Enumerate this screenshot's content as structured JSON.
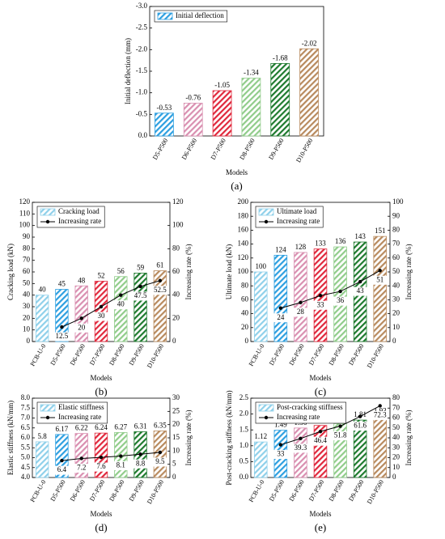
{
  "chart_data": [
    {
      "type": "bar",
      "caption": "(a)",
      "ylabel": "Initial deflection (mm)",
      "xlabel": "Models",
      "categories": [
        "D5-P500",
        "D6-P500",
        "D7-P500",
        "D8-P500",
        "D9-P500",
        "D10-P500"
      ],
      "ylim": [
        0,
        -3.0
      ],
      "yticks": [
        {
          "value": 0,
          "label": "0.0"
        },
        -0.5,
        {
          "value": -1,
          "label": "-1.0"
        },
        -1.5,
        {
          "value": -2,
          "label": "-2.0"
        },
        -2.5,
        {
          "value": -3,
          "label": "-3.0"
        }
      ],
      "series": [
        {
          "name": "Initial deflection",
          "colors": [
            "#2d9fe0",
            "#d98fb0",
            "#e0283c",
            "#90cc8a",
            "#1e7a2e",
            "#b88a5e"
          ],
          "values": [
            -0.53,
            -0.76,
            -1.05,
            -1.34,
            -1.68,
            -2.02
          ]
        }
      ]
    },
    {
      "type": "combo",
      "caption": "(b)",
      "ylabel": "Cracking load (kN)",
      "y2label": "Increasing rate (%)",
      "xlabel": "Models",
      "categories": [
        "PCB-U-0",
        "D5-P500",
        "D6-P500",
        "D7-P500",
        "D8-P500",
        "D9-P500",
        "D10-P500"
      ],
      "ylim": [
        0,
        120
      ],
      "yticks": [
        0,
        10,
        20,
        30,
        40,
        50,
        60,
        70,
        80,
        90,
        100,
        110,
        120
      ],
      "y2lim": [
        0,
        120
      ],
      "y2ticks": [
        0,
        20,
        40,
        60,
        80,
        100,
        120
      ],
      "series": [
        {
          "name": "Cracking load",
          "colors": [
            "#8fd0ea",
            "#2d9fe0",
            "#d98fb0",
            "#e0283c",
            "#90cc8a",
            "#1e7a2e",
            "#b88a5e"
          ],
          "values": [
            40,
            45,
            48,
            52,
            56,
            59,
            61
          ]
        },
        {
          "name": "Increasing rate",
          "color": "#000000",
          "axis": "y2",
          "values": [
            null,
            12.5,
            20,
            30,
            40,
            47.5,
            52.5
          ]
        }
      ]
    },
    {
      "type": "combo",
      "caption": "(c)",
      "ylabel": "Ultimate load (kN)",
      "y2label": "Increasing rate (%)",
      "xlabel": "Models",
      "categories": [
        "PCB-U-0",
        "D5-P500",
        "D6-P500",
        "D7-P500",
        "D8-P500",
        "D9-P500",
        "D10-P500"
      ],
      "ylim": [
        0,
        200
      ],
      "yticks": [
        0,
        20,
        40,
        60,
        80,
        100,
        120,
        140,
        160,
        180,
        200
      ],
      "y2lim": [
        0,
        100
      ],
      "y2ticks": [
        0,
        10,
        20,
        30,
        40,
        50,
        60,
        70,
        80,
        90,
        100
      ],
      "series": [
        {
          "name": "Ultimate load",
          "colors": [
            "#8fd0ea",
            "#2d9fe0",
            "#d98fb0",
            "#e0283c",
            "#90cc8a",
            "#1e7a2e",
            "#b88a5e"
          ],
          "values": [
            100,
            124,
            128,
            133,
            136,
            143,
            151
          ]
        },
        {
          "name": "Increasing rate",
          "color": "#000000",
          "axis": "y2",
          "values": [
            null,
            24,
            28,
            33,
            36,
            43,
            51
          ]
        }
      ]
    },
    {
      "type": "combo",
      "caption": "(d)",
      "ylabel": "Elastic stiffness (kN/mm)",
      "y2label": "Increasing rate (%)",
      "xlabel": "Models",
      "categories": [
        "PCB-U-0",
        "D5-P500",
        "D6-P500",
        "D7-P500",
        "D8-P500",
        "D9-P500",
        "D10-P500"
      ],
      "ylim": [
        4,
        8
      ],
      "yticks": [
        {
          "value": 4,
          "label": "4.0"
        },
        4.5,
        {
          "value": 5,
          "label": "5.0"
        },
        5.5,
        {
          "value": 6,
          "label": "6.0"
        },
        6.5,
        {
          "value": 7,
          "label": "7.0"
        },
        7.5,
        {
          "value": 8,
          "label": "8.0"
        }
      ],
      "y2lim": [
        0,
        30
      ],
      "y2ticks": [
        0,
        5,
        10,
        15,
        20,
        25,
        30
      ],
      "series": [
        {
          "name": "Elastic stiffness",
          "colors": [
            "#8fd0ea",
            "#2d9fe0",
            "#d98fb0",
            "#e0283c",
            "#90cc8a",
            "#1e7a2e",
            "#b88a5e"
          ],
          "values": [
            5.8,
            6.17,
            6.22,
            6.24,
            6.27,
            6.31,
            6.35
          ]
        },
        {
          "name": "Increasing rate",
          "color": "#000000",
          "axis": "y2",
          "values": [
            null,
            6.4,
            7.2,
            7.6,
            8.1,
            8.8,
            9.5
          ]
        }
      ]
    },
    {
      "type": "combo",
      "caption": "(e)",
      "ylabel": "Post-cracking stiffness (kN/mm)",
      "y2label": "Increasing rate (%)",
      "xlabel": "Models",
      "categories": [
        "PCB-U-0",
        "D5-P500",
        "D6-P500",
        "D7-P500",
        "D8-P500",
        "D9-P500",
        "D10-P500"
      ],
      "ylim": [
        0,
        2.5
      ],
      "yticks": [
        {
          "value": 0,
          "label": "0.0"
        },
        0.5,
        {
          "value": 1,
          "label": "1.0"
        },
        1.5,
        {
          "value": 2,
          "label": "2.0"
        },
        2.5
      ],
      "y2lim": [
        0,
        80
      ],
      "y2ticks": [
        0,
        10,
        20,
        30,
        40,
        50,
        60,
        70,
        80
      ],
      "series": [
        {
          "name": "Post-cracking stiffness",
          "colors": [
            "#8fd0ea",
            "#2d9fe0",
            "#d98fb0",
            "#e0283c",
            "#90cc8a",
            "#1e7a2e",
            "#b88a5e"
          ],
          "values": [
            1.12,
            1.49,
            1.56,
            1.64,
            1.7,
            1.81,
            1.93
          ]
        },
        {
          "name": "Increasing rate",
          "color": "#000000",
          "axis": "y2",
          "values": [
            null,
            33,
            39.3,
            46.4,
            51.8,
            61.6,
            72.3
          ]
        }
      ]
    }
  ]
}
